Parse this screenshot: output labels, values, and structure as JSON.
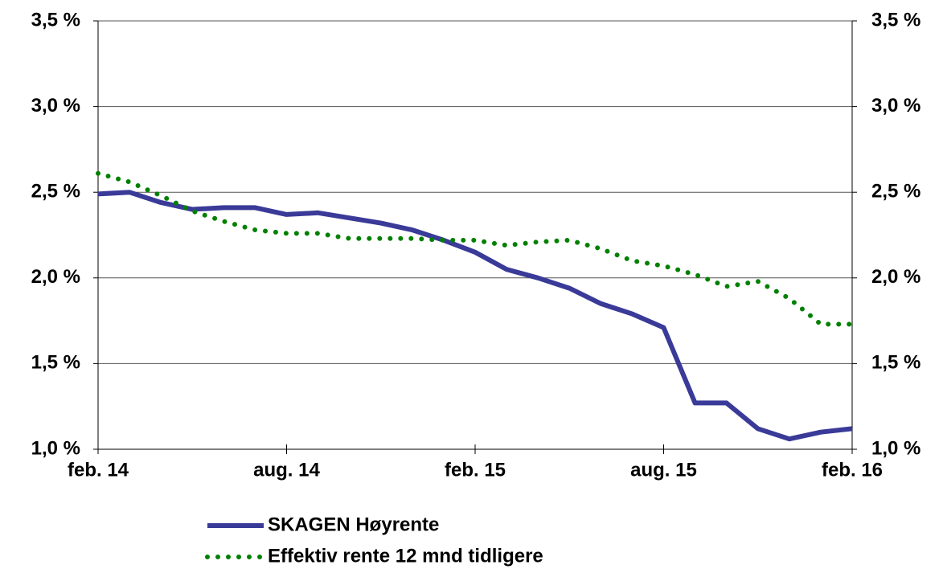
{
  "chart_data": {
    "type": "line",
    "categories": [
      "feb. 14",
      null,
      null,
      null,
      null,
      null,
      "aug. 14",
      null,
      null,
      null,
      null,
      null,
      "feb. 15",
      null,
      null,
      null,
      null,
      null,
      "aug. 15",
      null,
      null,
      null,
      null,
      null,
      "feb. 16"
    ],
    "series": [
      {
        "name": "SKAGEN Høyrente",
        "color": "#3a3a98",
        "style": "solid",
        "values": [
          2.49,
          2.5,
          2.44,
          2.4,
          2.41,
          2.41,
          2.37,
          2.38,
          2.35,
          2.32,
          2.28,
          2.22,
          2.15,
          2.05,
          2.0,
          1.94,
          1.85,
          1.79,
          1.71,
          1.27,
          1.27,
          1.12,
          1.06,
          1.1,
          1.12
        ]
      },
      {
        "name": "Effektiv rente 12 mnd tidligere",
        "color": "#008000",
        "style": "dotted",
        "values": [
          2.61,
          2.56,
          2.48,
          2.39,
          2.33,
          2.28,
          2.26,
          2.26,
          2.23,
          2.23,
          2.23,
          2.22,
          2.22,
          2.19,
          2.21,
          2.22,
          2.17,
          2.1,
          2.07,
          2.02,
          1.95,
          1.98,
          1.88,
          1.73,
          1.73
        ]
      }
    ],
    "ylim": [
      1.0,
      3.5
    ],
    "yticks": [
      {
        "value": 1.0,
        "label": "1,0 %"
      },
      {
        "value": 1.5,
        "label": "1,5 %"
      },
      {
        "value": 2.0,
        "label": "2,0 %"
      },
      {
        "value": 2.5,
        "label": "2,5 %"
      },
      {
        "value": 3.0,
        "label": "3,0 %"
      },
      {
        "value": 3.5,
        "label": "3,5 %"
      }
    ],
    "y2lim": [
      1.0,
      3.5
    ],
    "y2ticks": [
      {
        "value": 1.0,
        "label": "1,0 %"
      },
      {
        "value": 1.5,
        "label": "1,5 %"
      },
      {
        "value": 2.0,
        "label": "2,0 %"
      },
      {
        "value": 2.5,
        "label": "2,5 %"
      },
      {
        "value": 3.0,
        "label": "3,0 %"
      },
      {
        "value": 3.5,
        "label": "3,5 %"
      }
    ],
    "grid": true,
    "legend": "bottom"
  }
}
